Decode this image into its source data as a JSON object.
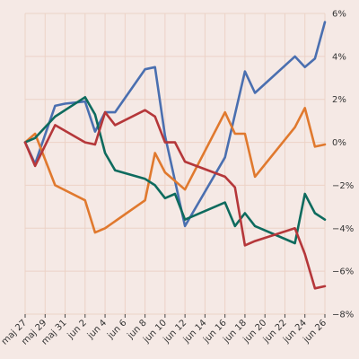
{
  "chart_data": {
    "type": "line",
    "title": "",
    "xlabel": "",
    "ylabel": "",
    "ylim": [
      -8,
      6
    ],
    "y_axis_side": "right",
    "y_ticks": [
      6,
      4,
      2,
      0,
      -2,
      -4,
      -6,
      -8
    ],
    "y_tick_labels": [
      "6%",
      "4%",
      "2%",
      "0%",
      "−2%",
      "−4%",
      "−6%",
      "−8%"
    ],
    "x_ticks": [
      "2024-05-27",
      "2024-05-29",
      "2024-05-31",
      "2024-06-02",
      "2024-06-04",
      "2024-06-06",
      "2024-06-08",
      "2024-06-10",
      "2024-06-12",
      "2024-06-14",
      "2024-06-16",
      "2024-06-18",
      "2024-06-20",
      "2024-06-22",
      "2024-06-24",
      "2024-06-26"
    ],
    "x_tick_labels": [
      "maj 27",
      "maj 29",
      "maj 31",
      "jun 2",
      "jun 4",
      "jun 6",
      "jun 8",
      "jun 10",
      "jun 12",
      "jun 14",
      "jun 16",
      "jun 18",
      "jun 20",
      "jun 22",
      "jun 24",
      "jun 26"
    ],
    "xlim": [
      "2024-05-27",
      "2024-06-26"
    ],
    "grid": true,
    "legend": "none",
    "series": [
      {
        "color": "#4a6fb0",
        "points": [
          [
            "2024-05-27",
            0.0
          ],
          [
            "2024-05-28",
            -1.0
          ],
          [
            "2024-05-30",
            1.7
          ],
          [
            "2024-05-31",
            1.8
          ],
          [
            "2024-06-02",
            1.9
          ],
          [
            "2024-06-03",
            0.5
          ],
          [
            "2024-06-04",
            1.4
          ],
          [
            "2024-06-05",
            1.4
          ],
          [
            "2024-06-08",
            3.4
          ],
          [
            "2024-06-09",
            3.5
          ],
          [
            "2024-06-10",
            0.3
          ],
          [
            "2024-06-12",
            -3.9
          ],
          [
            "2024-06-16",
            -0.7
          ],
          [
            "2024-06-18",
            3.3
          ],
          [
            "2024-06-19",
            2.3
          ],
          [
            "2024-06-23",
            4.0
          ],
          [
            "2024-06-24",
            3.5
          ],
          [
            "2024-06-25",
            3.9
          ],
          [
            "2024-06-26",
            5.6
          ]
        ]
      },
      {
        "color": "#e0792e",
        "points": [
          [
            "2024-05-27",
            0.0
          ],
          [
            "2024-05-28",
            0.4
          ],
          [
            "2024-05-30",
            -2.0
          ],
          [
            "2024-06-02",
            -2.7
          ],
          [
            "2024-06-03",
            -4.2
          ],
          [
            "2024-06-04",
            -4.0
          ],
          [
            "2024-06-08",
            -2.7
          ],
          [
            "2024-06-09",
            -0.5
          ],
          [
            "2024-06-10",
            -1.4
          ],
          [
            "2024-06-12",
            -2.2
          ],
          [
            "2024-06-16",
            1.4
          ],
          [
            "2024-06-17",
            0.4
          ],
          [
            "2024-06-18",
            0.4
          ],
          [
            "2024-06-19",
            -1.6
          ],
          [
            "2024-06-23",
            0.7
          ],
          [
            "2024-06-24",
            1.6
          ],
          [
            "2024-06-25",
            -0.2
          ],
          [
            "2024-06-26",
            -0.1
          ]
        ]
      },
      {
        "color": "#0e6b5e",
        "points": [
          [
            "2024-05-27",
            0.0
          ],
          [
            "2024-05-28",
            0.2
          ],
          [
            "2024-05-30",
            1.2
          ],
          [
            "2024-06-02",
            2.1
          ],
          [
            "2024-06-03",
            1.3
          ],
          [
            "2024-06-04",
            -0.5
          ],
          [
            "2024-06-05",
            -1.3
          ],
          [
            "2024-06-08",
            -1.7
          ],
          [
            "2024-06-09",
            -2.0
          ],
          [
            "2024-06-10",
            -2.6
          ],
          [
            "2024-06-11",
            -2.4
          ],
          [
            "2024-06-12",
            -3.6
          ],
          [
            "2024-06-16",
            -2.8
          ],
          [
            "2024-06-17",
            -3.9
          ],
          [
            "2024-06-18",
            -3.3
          ],
          [
            "2024-06-19",
            -3.9
          ],
          [
            "2024-06-23",
            -4.7
          ],
          [
            "2024-06-24",
            -2.4
          ],
          [
            "2024-06-25",
            -3.3
          ],
          [
            "2024-06-26",
            -3.6
          ]
        ]
      },
      {
        "color": "#b5373a",
        "points": [
          [
            "2024-05-27",
            0.0
          ],
          [
            "2024-05-28",
            -1.1
          ],
          [
            "2024-05-30",
            0.8
          ],
          [
            "2024-06-02",
            0.0
          ],
          [
            "2024-06-03",
            -0.1
          ],
          [
            "2024-06-04",
            1.4
          ],
          [
            "2024-06-05",
            0.8
          ],
          [
            "2024-06-08",
            1.5
          ],
          [
            "2024-06-09",
            1.2
          ],
          [
            "2024-06-10",
            0.0
          ],
          [
            "2024-06-11",
            0.0
          ],
          [
            "2024-06-12",
            -0.9
          ],
          [
            "2024-06-16",
            -1.6
          ],
          [
            "2024-06-17",
            -2.1
          ],
          [
            "2024-06-18",
            -4.8
          ],
          [
            "2024-06-19",
            -4.6
          ],
          [
            "2024-06-23",
            -4.0
          ],
          [
            "2024-06-24",
            -5.2
          ],
          [
            "2024-06-25",
            -6.8
          ],
          [
            "2024-06-26",
            -6.7
          ]
        ]
      }
    ]
  }
}
